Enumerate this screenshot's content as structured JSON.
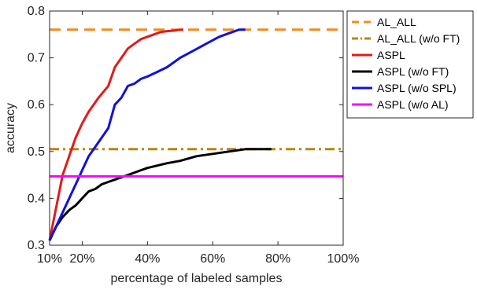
{
  "chart_data": {
    "type": "line",
    "title": "",
    "xlabel": "percentage of labeled samples",
    "ylabel": "accuracy",
    "xlim": [
      10,
      100
    ],
    "ylim": [
      0.3,
      0.8
    ],
    "x_ticks": [
      10,
      20,
      40,
      60,
      80,
      100
    ],
    "x_tick_labels": [
      "10%",
      "20%",
      "40%",
      "60%",
      "80%",
      "100%"
    ],
    "y_ticks": [
      0.3,
      0.4,
      0.5,
      0.6,
      0.7,
      0.8
    ],
    "y_tick_labels": [
      "0.3",
      "0.4",
      "0.5",
      "0.6",
      "0.7",
      "0.8"
    ],
    "grid": false,
    "legend_position": "outside-top-right",
    "series": [
      {
        "name": "AL_ALL",
        "color": "#f08c1e",
        "dash": "dashed",
        "x": [
          10,
          100
        ],
        "y": [
          0.76,
          0.76
        ]
      },
      {
        "name": "AL_ALL (w/o FT)",
        "color": "#b8860b",
        "dash": "dashdot",
        "x": [
          10,
          100
        ],
        "y": [
          0.505,
          0.505
        ]
      },
      {
        "name": "ASPL",
        "color": "#e31a1c",
        "dash": "solid",
        "x": [
          10,
          12,
          14,
          16,
          18,
          20,
          22,
          25,
          28,
          30,
          32,
          34,
          36,
          38,
          40,
          42,
          44,
          46,
          48,
          50,
          51
        ],
        "y": [
          0.31,
          0.38,
          0.45,
          0.49,
          0.53,
          0.56,
          0.585,
          0.615,
          0.64,
          0.68,
          0.7,
          0.72,
          0.73,
          0.74,
          0.745,
          0.75,
          0.755,
          0.757,
          0.758,
          0.76,
          0.76
        ]
      },
      {
        "name": "ASPL (w/o FT)",
        "color": "#000000",
        "dash": "solid",
        "x": [
          10,
          12,
          14,
          16,
          18,
          20,
          22,
          24,
          26,
          28,
          30,
          32,
          34,
          36,
          38,
          40,
          43,
          46,
          50,
          55,
          60,
          65,
          70,
          75,
          78
        ],
        "y": [
          0.31,
          0.34,
          0.36,
          0.375,
          0.385,
          0.4,
          0.415,
          0.42,
          0.43,
          0.435,
          0.44,
          0.445,
          0.45,
          0.455,
          0.46,
          0.465,
          0.47,
          0.475,
          0.48,
          0.49,
          0.495,
          0.5,
          0.505,
          0.505,
          0.505
        ]
      },
      {
        "name": "ASPL (w/o SPL)",
        "color": "#1010e0",
        "dash": "solid",
        "x": [
          10,
          12,
          14,
          16,
          18,
          20,
          22,
          25,
          28,
          30,
          32,
          34,
          36,
          38,
          40,
          43,
          46,
          50,
          54,
          58,
          62,
          66,
          68,
          70
        ],
        "y": [
          0.31,
          0.34,
          0.37,
          0.4,
          0.43,
          0.46,
          0.49,
          0.52,
          0.55,
          0.6,
          0.615,
          0.64,
          0.645,
          0.655,
          0.66,
          0.67,
          0.68,
          0.7,
          0.715,
          0.73,
          0.745,
          0.755,
          0.76,
          0.76
        ]
      },
      {
        "name": "ASPL (w/o AL)",
        "color": "#ff00ff",
        "dash": "solid",
        "x": [
          10,
          100
        ],
        "y": [
          0.447,
          0.447
        ]
      }
    ]
  }
}
